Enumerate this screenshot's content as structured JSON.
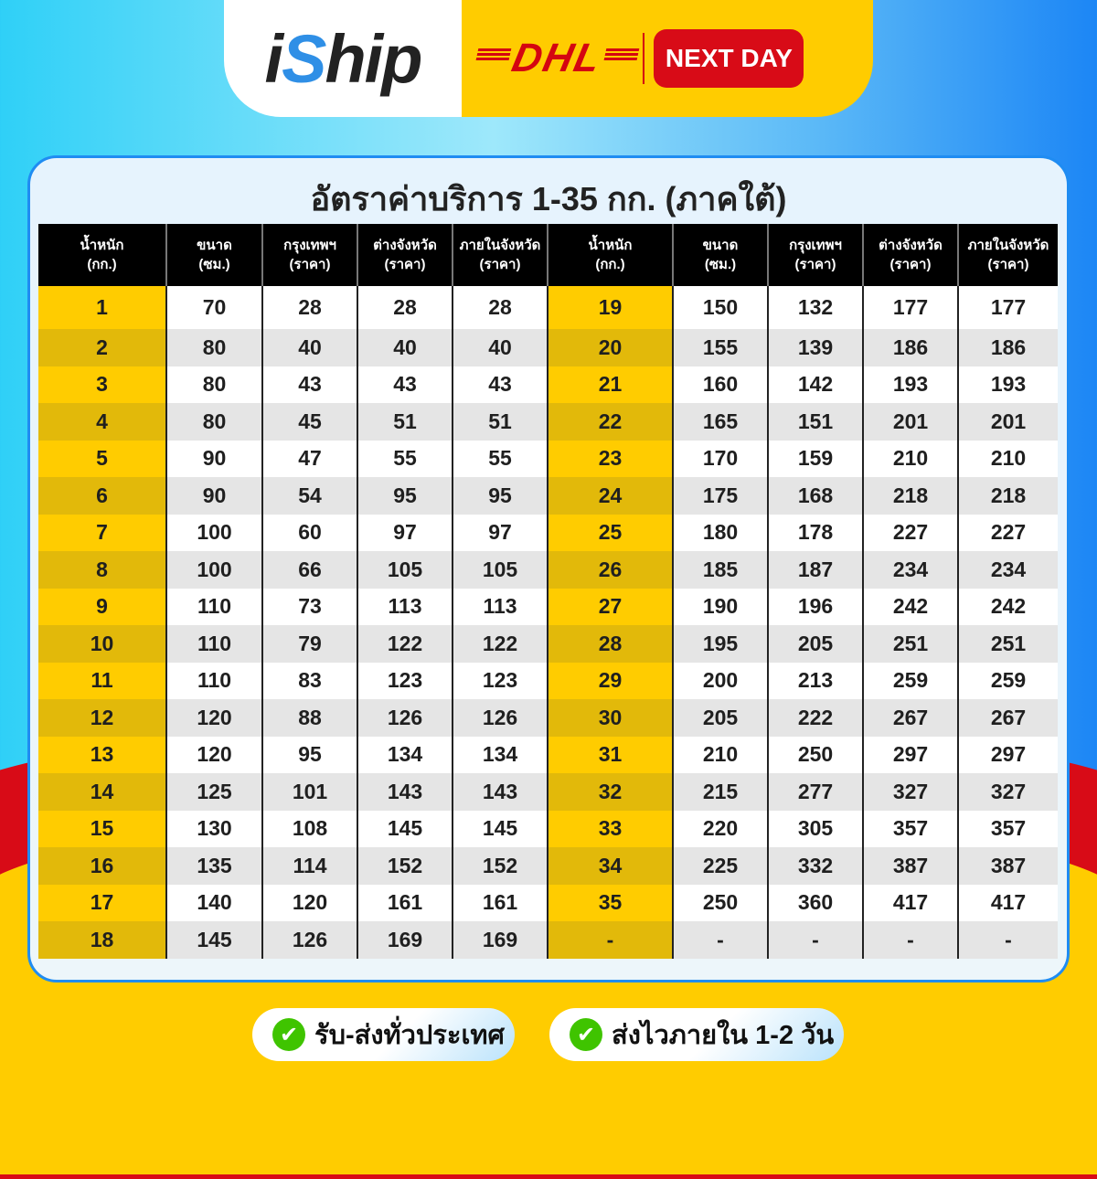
{
  "header": {
    "brand_logo": "iShip",
    "carrier_logo": "DHL",
    "service_badge": "NEXT DAY"
  },
  "title": "อัตราค่าบริการ 1-35 กก. (ภาคใต้)",
  "colors": {
    "yellow": "#ffcc00",
    "red": "#d80b17",
    "blue": "#1f8cf2",
    "green": "#3fc400"
  },
  "table": {
    "headers": [
      [
        "น้ำหนัก",
        "(กก.)"
      ],
      [
        "ขนาด",
        "(ซม.)"
      ],
      [
        "กรุงเทพฯ",
        "(ราคา)"
      ],
      [
        "ต่างจังหวัด",
        "(ราคา)"
      ],
      [
        "ภายในจังหวัด",
        "(ราคา)"
      ],
      [
        "น้ำหนัก",
        "(กก.)"
      ],
      [
        "ขนาด",
        "(ซม.)"
      ],
      [
        "กรุงเทพฯ",
        "(ราคา)"
      ],
      [
        "ต่างจังหวัด",
        "(ราคา)"
      ],
      [
        "ภายในจังหวัด",
        "(ราคา)"
      ]
    ],
    "rows": [
      [
        "1",
        "70",
        "28",
        "28",
        "28",
        "19",
        "150",
        "132",
        "177",
        "177"
      ],
      [
        "2",
        "80",
        "40",
        "40",
        "40",
        "20",
        "155",
        "139",
        "186",
        "186"
      ],
      [
        "3",
        "80",
        "43",
        "43",
        "43",
        "21",
        "160",
        "142",
        "193",
        "193"
      ],
      [
        "4",
        "80",
        "45",
        "51",
        "51",
        "22",
        "165",
        "151",
        "201",
        "201"
      ],
      [
        "5",
        "90",
        "47",
        "55",
        "55",
        "23",
        "170",
        "159",
        "210",
        "210"
      ],
      [
        "6",
        "90",
        "54",
        "95",
        "95",
        "24",
        "175",
        "168",
        "218",
        "218"
      ],
      [
        "7",
        "100",
        "60",
        "97",
        "97",
        "25",
        "180",
        "178",
        "227",
        "227"
      ],
      [
        "8",
        "100",
        "66",
        "105",
        "105",
        "26",
        "185",
        "187",
        "234",
        "234"
      ],
      [
        "9",
        "110",
        "73",
        "113",
        "113",
        "27",
        "190",
        "196",
        "242",
        "242"
      ],
      [
        "10",
        "110",
        "79",
        "122",
        "122",
        "28",
        "195",
        "205",
        "251",
        "251"
      ],
      [
        "11",
        "110",
        "83",
        "123",
        "123",
        "29",
        "200",
        "213",
        "259",
        "259"
      ],
      [
        "12",
        "120",
        "88",
        "126",
        "126",
        "30",
        "205",
        "222",
        "267",
        "267"
      ],
      [
        "13",
        "120",
        "95",
        "134",
        "134",
        "31",
        "210",
        "250",
        "297",
        "297"
      ],
      [
        "14",
        "125",
        "101",
        "143",
        "143",
        "32",
        "215",
        "277",
        "327",
        "327"
      ],
      [
        "15",
        "130",
        "108",
        "145",
        "145",
        "33",
        "220",
        "305",
        "357",
        "357"
      ],
      [
        "16",
        "135",
        "114",
        "152",
        "152",
        "34",
        "225",
        "332",
        "387",
        "387"
      ],
      [
        "17",
        "140",
        "120",
        "161",
        "161",
        "35",
        "250",
        "360",
        "417",
        "417"
      ],
      [
        "18",
        "145",
        "126",
        "169",
        "169",
        "-",
        "-",
        "-",
        "-",
        "-"
      ]
    ]
  },
  "features": [
    {
      "icon": "check-circle-icon",
      "label": "รับ-ส่งทั่วประเทศ"
    },
    {
      "icon": "check-circle-icon",
      "label": "ส่งไวภายใน 1-2 วัน"
    }
  ]
}
